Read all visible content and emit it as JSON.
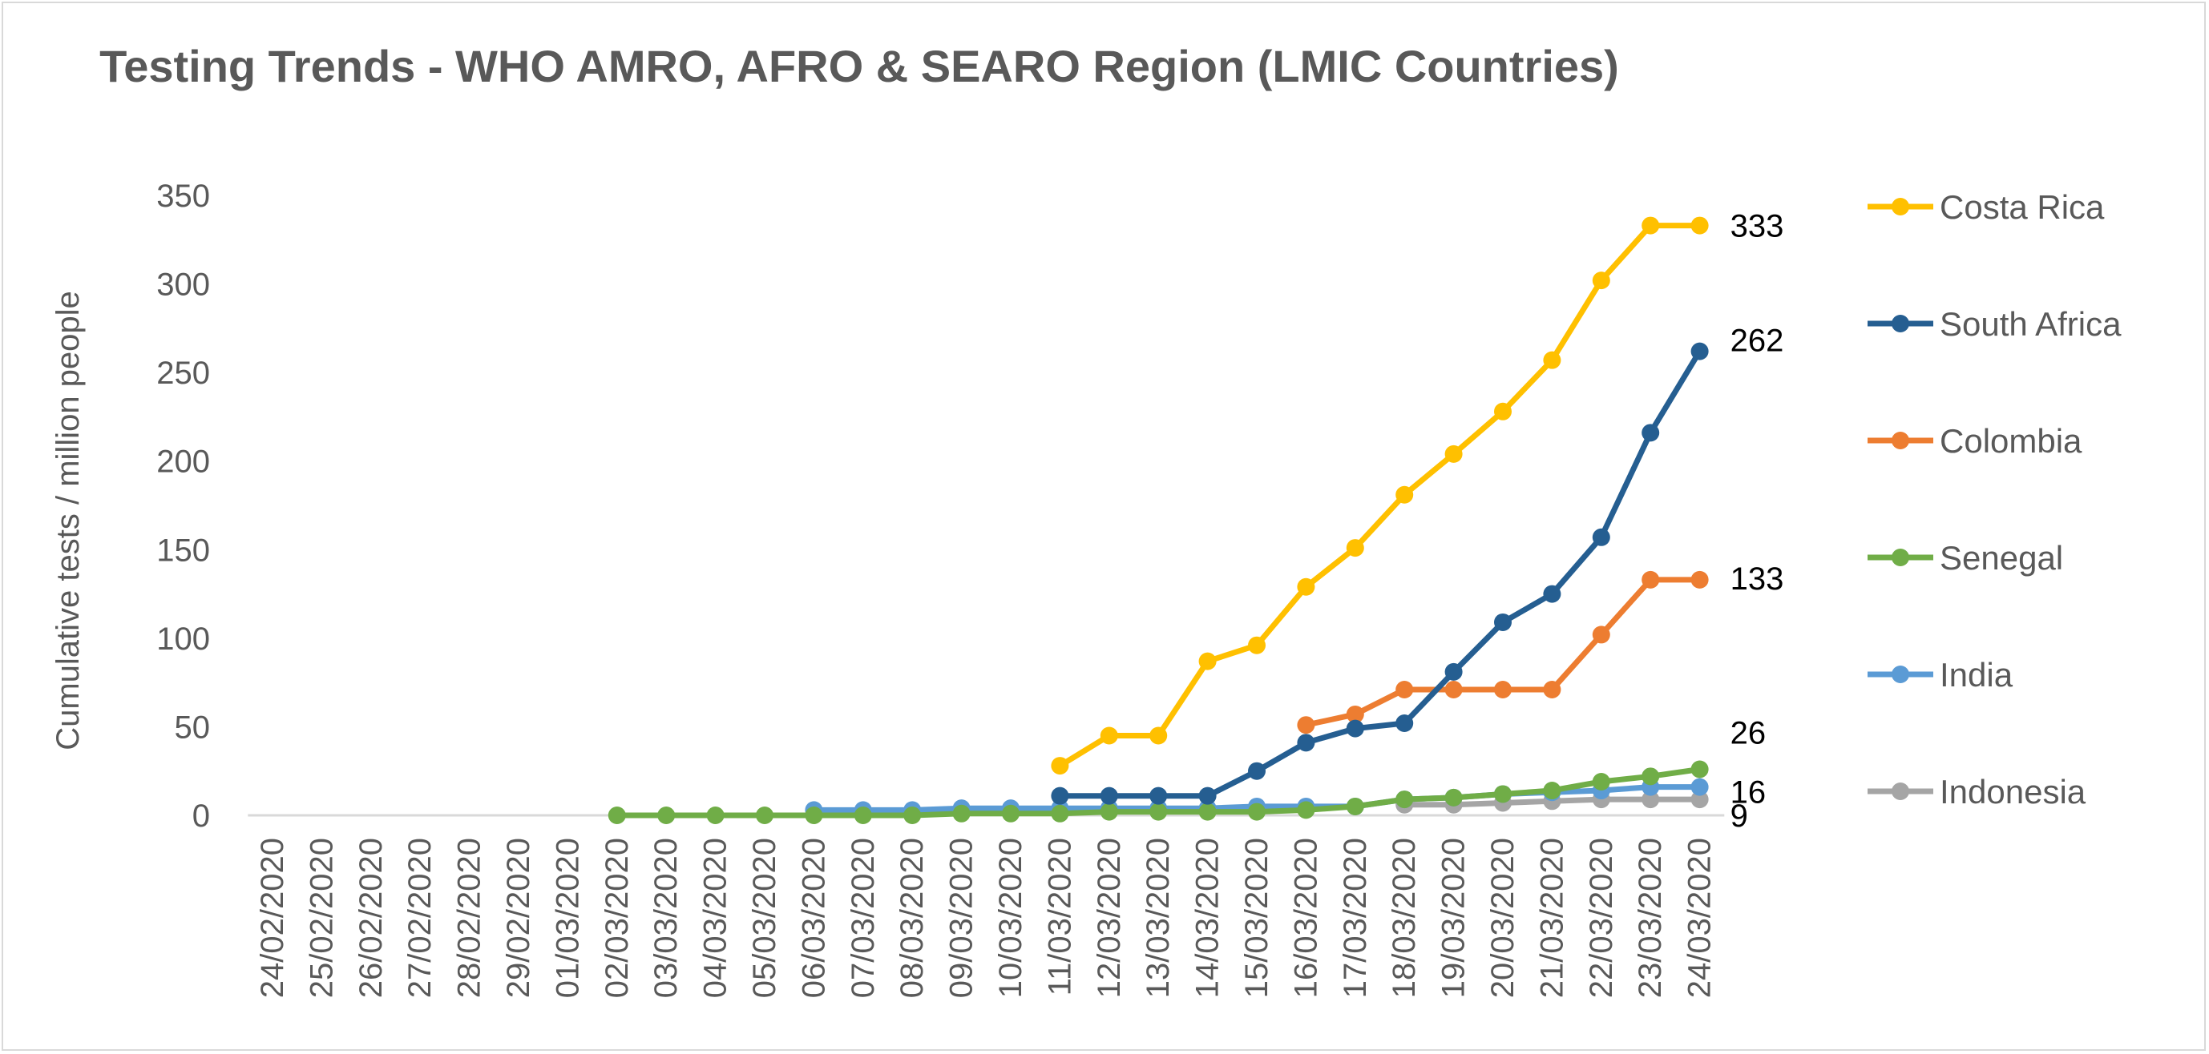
{
  "chart_data": {
    "type": "line",
    "title": "Testing Trends - WHO AMRO, AFRO & SEARO Region (LMIC Countries)",
    "ylabel": "Cumulative tests / million people",
    "xlabel": "",
    "ylim": [
      0,
      350
    ],
    "yticks": [
      0,
      50,
      100,
      150,
      200,
      250,
      300,
      350
    ],
    "grid": false,
    "legend_position": "right",
    "categories": [
      "24/02/2020",
      "25/02/2020",
      "26/02/2020",
      "27/02/2020",
      "28/02/2020",
      "29/02/2020",
      "01/03/2020",
      "02/03/2020",
      "03/03/2020",
      "04/03/2020",
      "05/03/2020",
      "06/03/2020",
      "07/03/2020",
      "08/03/2020",
      "09/03/2020",
      "10/03/2020",
      "11/03/2020",
      "12/03/2020",
      "13/03/2020",
      "14/03/2020",
      "15/03/2020",
      "16/03/2020",
      "17/03/2020",
      "18/03/2020",
      "19/03/2020",
      "20/03/2020",
      "21/03/2020",
      "22/03/2020",
      "23/03/2020",
      "24/03/2020"
    ],
    "series": [
      {
        "name": "Costa Rica",
        "color": "#FFC000",
        "values": [
          null,
          null,
          null,
          null,
          null,
          null,
          null,
          null,
          null,
          null,
          null,
          null,
          null,
          null,
          null,
          null,
          28,
          45,
          45,
          87,
          96,
          129,
          151,
          181,
          204,
          228,
          257,
          302,
          333,
          333
        ],
        "end_label": "333"
      },
      {
        "name": "South Africa",
        "color": "#255E91",
        "values": [
          null,
          null,
          null,
          null,
          null,
          null,
          null,
          null,
          null,
          null,
          null,
          null,
          null,
          null,
          null,
          null,
          11,
          11,
          11,
          11,
          25,
          41,
          49,
          52,
          81,
          109,
          125,
          157,
          216,
          262
        ],
        "end_label": "262"
      },
      {
        "name": "Colombia",
        "color": "#ED7D31",
        "values": [
          null,
          null,
          null,
          null,
          null,
          null,
          null,
          null,
          null,
          null,
          null,
          null,
          null,
          null,
          null,
          null,
          null,
          null,
          null,
          null,
          null,
          51,
          57,
          71,
          71,
          71,
          71,
          102,
          133,
          133
        ],
        "end_label": "133"
      },
      {
        "name": "Senegal",
        "color": "#70AD47",
        "values": [
          null,
          null,
          null,
          null,
          null,
          null,
          null,
          0,
          0,
          0,
          0,
          0,
          0,
          0,
          1,
          1,
          1,
          2,
          2,
          2,
          2,
          3,
          5,
          9,
          10,
          12,
          14,
          19,
          22,
          26
        ],
        "end_label": "26"
      },
      {
        "name": "India",
        "color": "#5B9BD5",
        "values": [
          null,
          null,
          null,
          null,
          null,
          null,
          null,
          null,
          null,
          null,
          null,
          3,
          3,
          3,
          4,
          4,
          4,
          4,
          4,
          4,
          5,
          5,
          5,
          9,
          10,
          12,
          13,
          14,
          16,
          16
        ],
        "end_label": "16"
      },
      {
        "name": "Indonesia",
        "color": "#A5A5A5",
        "values": [
          null,
          null,
          null,
          null,
          null,
          null,
          null,
          null,
          null,
          null,
          null,
          null,
          null,
          null,
          null,
          null,
          null,
          null,
          null,
          null,
          null,
          null,
          null,
          6,
          6,
          7,
          8,
          9,
          9,
          9
        ],
        "end_label": "9"
      }
    ]
  }
}
